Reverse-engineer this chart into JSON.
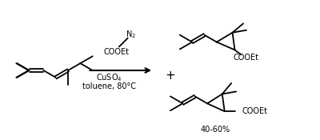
{
  "background_color": "#ffffff",
  "line_color": "#000000",
  "line_width": 1.3,
  "figsize": [
    4.0,
    1.75
  ],
  "dpi": 100,
  "reagent_cuso4": "CuSO$_4$",
  "reagent_toluene": "toluene, 80°C",
  "reagent_n2": "N$_2$",
  "reagent_cooet_above": "COOEt",
  "product_cooet1": "COOEt",
  "product_cooet2": "COOEt",
  "yield_label": "40-60%",
  "plus_label": "+"
}
